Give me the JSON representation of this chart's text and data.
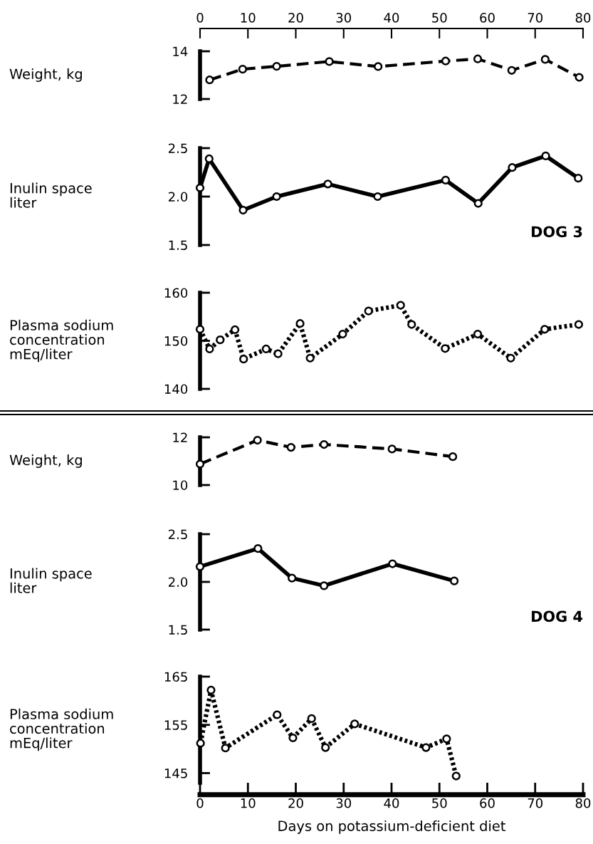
{
  "chart_data": [
    {
      "type": "line",
      "ylabel": "Weight, kg",
      "xlim": [
        0,
        80
      ],
      "xticks": [
        0,
        10,
        20,
        30,
        40,
        50,
        60,
        70,
        80
      ],
      "ylim": [
        12,
        14
      ],
      "yticks": [
        12,
        14
      ],
      "marker": "circle",
      "line_style": "dashed",
      "series": [
        {
          "color": "#000000",
          "x": [
            2.0,
            8.9,
            16.0,
            27.0,
            37.2,
            51.3,
            58.0,
            65.1,
            72.1,
            79.2
          ],
          "values": [
            12.8,
            13.25,
            13.37,
            13.57,
            13.36,
            13.59,
            13.68,
            13.2,
            13.66,
            12.91
          ]
        }
      ]
    },
    {
      "type": "line",
      "ylabel": "Inulin space\nliter",
      "xlim": [
        0,
        80
      ],
      "ylim": [
        1.5,
        2.5
      ],
      "yticks": [
        1.5,
        {
          "value": 2,
          "label": "2.0"
        },
        2.5
      ],
      "tick_labels": "y",
      "marker": "circle",
      "line_style": "solid",
      "annotations": [
        "DOG 3"
      ],
      "series": [
        {
          "color": "#000000",
          "x": [
            0,
            1.9,
            9.0,
            16.0,
            26.7,
            37.1,
            51.3,
            58.1,
            65.2,
            72.2,
            79.0
          ],
          "values": [
            2.09,
            2.39,
            1.86,
            2.0,
            2.13,
            2.0,
            2.17,
            1.93,
            2.3,
            2.42,
            2.19
          ]
        }
      ]
    },
    {
      "type": "line",
      "ylabel": "Plasma sodium\nconcentration\nmEq/liter",
      "xlim": [
        0,
        80
      ],
      "ylim": [
        140,
        160
      ],
      "yticks": [
        140,
        150,
        160
      ],
      "tick_labels": "y",
      "marker": "circle",
      "line_style": "dotted",
      "series": [
        {
          "color": "#000000",
          "x": [
            0,
            2.0,
            4.2,
            7.3,
            9.1,
            13.8,
            16.3,
            20.9,
            23.0,
            29.8,
            35.2,
            41.9,
            44.2,
            51.2,
            58.0,
            64.9,
            72.0,
            79.1
          ],
          "values": [
            152.4,
            148.3,
            150.2,
            152.3,
            146.2,
            148.3,
            147.3,
            153.6,
            146.4,
            151.4,
            156.2,
            157.4,
            153.4,
            148.4,
            151.4,
            146.4,
            152.4,
            153.4
          ]
        }
      ]
    },
    {
      "type": "line",
      "ylabel": "Weight, kg",
      "xlim": [
        0,
        80
      ],
      "ylim": [
        10,
        12
      ],
      "yticks": [
        10,
        12
      ],
      "tick_labels": "y",
      "marker": "circle",
      "line_style": "dashed",
      "series": [
        {
          "color": "#000000",
          "x": [
            0,
            12.0,
            19.0,
            25.9,
            40.1,
            52.8
          ],
          "values": [
            10.88,
            11.88,
            11.58,
            11.7,
            11.51,
            11.19
          ]
        }
      ]
    },
    {
      "type": "line",
      "ylabel": "Inulin space\nliter",
      "xlim": [
        0,
        80
      ],
      "ylim": [
        1.5,
        2.5
      ],
      "yticks": [
        1.5,
        {
          "value": 2,
          "label": "2.0"
        },
        2.5
      ],
      "tick_labels": "y",
      "marker": "circle",
      "line_style": "solid",
      "annotations": [
        "DOG 4"
      ],
      "series": [
        {
          "color": "#000000",
          "x": [
            0,
            12.1,
            19.2,
            25.9,
            40.2,
            53.1
          ],
          "values": [
            2.16,
            2.35,
            2.04,
            1.96,
            2.19,
            2.01
          ]
        }
      ]
    },
    {
      "type": "line",
      "ylabel": "Plasma sodium\nconcentration\nmEq/liter",
      "xlabel": "Days on potassium-deficient diet",
      "xlim": [
        0,
        80
      ],
      "xticks": [
        0,
        10,
        20,
        30,
        40,
        50,
        60,
        70,
        80
      ],
      "ylim": [
        143,
        165
      ],
      "yticks": [
        145,
        155,
        165
      ],
      "marker": "circle",
      "line_style": "dotted",
      "series": [
        {
          "color": "#000000",
          "x": [
            0.1,
            2.3,
            5.3,
            16.1,
            19.4,
            23.3,
            26.2,
            32.3,
            47.2,
            51.5,
            53.5
          ],
          "values": [
            151.2,
            162.2,
            150.2,
            157.1,
            152.3,
            156.3,
            150.3,
            155.2,
            150.3,
            152.1,
            144.4
          ]
        }
      ]
    }
  ]
}
